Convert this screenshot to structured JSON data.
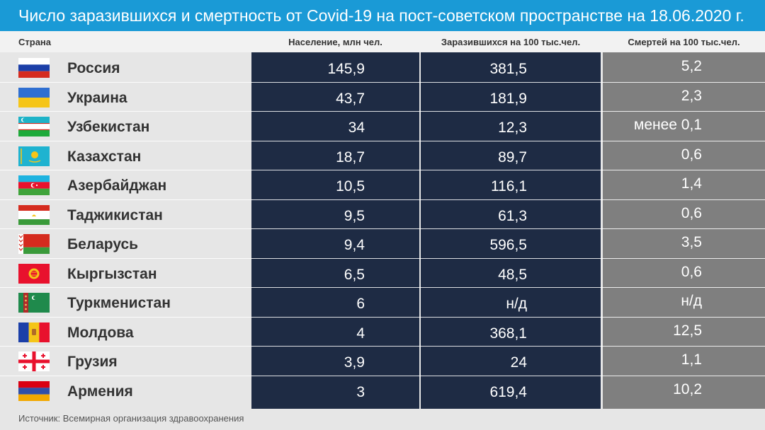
{
  "title": "Число заразившихся и смертность от Covid-19 на пост-советском пространстве на 18.06.2020 г.",
  "headers": {
    "country": "Страна",
    "population": "Население, млн чел.",
    "infected": "Заразившихся на 100 тыс.чел.",
    "deaths": "Смертей на 100 тыс.чел."
  },
  "source": "Источник: Всемирная организация здравоохранения",
  "colors": {
    "title_bar": "#1a9ad6",
    "dark_column": "#1e2b44",
    "gray_column": "#7f7f7f",
    "background": "#e6e6e6"
  },
  "chart_data": {
    "type": "table",
    "title": "Число заразившихся и смертность от Covid-19 на пост-советском пространстве на 18.06.2020 г.",
    "columns": [
      "Страна",
      "Население, млн чел.",
      "Заразившихся на 100 тыс.чел.",
      "Смертей на 100 тыс.чел."
    ],
    "rows": [
      {
        "country": "Россия",
        "flag": "russia-flag-icon",
        "population": "145,9",
        "infected": "381,5",
        "deaths": "5,2"
      },
      {
        "country": "Украина",
        "flag": "ukraine-flag-icon",
        "population": "43,7",
        "infected": "181,9",
        "deaths": "2,3"
      },
      {
        "country": "Узбекистан",
        "flag": "uzbekistan-flag-icon",
        "population": "34",
        "infected": "12,3",
        "deaths": "менее 0,1"
      },
      {
        "country": "Казахстан",
        "flag": "kazakhstan-flag-icon",
        "population": "18,7",
        "infected": "89,7",
        "deaths": "0,6"
      },
      {
        "country": "Азербайджан",
        "flag": "azerbaijan-flag-icon",
        "population": "10,5",
        "infected": "116,1",
        "deaths": "1,4"
      },
      {
        "country": "Таджикистан",
        "flag": "tajikistan-flag-icon",
        "population": "9,5",
        "infected": "61,3",
        "deaths": "0,6"
      },
      {
        "country": "Беларусь",
        "flag": "belarus-flag-icon",
        "population": "9,4",
        "infected": "596,5",
        "deaths": "3,5"
      },
      {
        "country": "Кыргызстан",
        "flag": "kyrgyzstan-flag-icon",
        "population": "6,5",
        "infected": "48,5",
        "deaths": "0,6"
      },
      {
        "country": "Туркменистан",
        "flag": "turkmenistan-flag-icon",
        "population": "6",
        "infected": "н/д",
        "deaths": "н/д"
      },
      {
        "country": "Молдова",
        "flag": "moldova-flag-icon",
        "population": "4",
        "infected": "368,1",
        "deaths": "12,5"
      },
      {
        "country": "Грузия",
        "flag": "georgia-flag-icon",
        "population": "3,9",
        "infected": "24",
        "deaths": "1,1"
      },
      {
        "country": "Армения",
        "flag": "armenia-flag-icon",
        "population": "3",
        "infected": "619,4",
        "deaths": "10,2"
      }
    ]
  }
}
